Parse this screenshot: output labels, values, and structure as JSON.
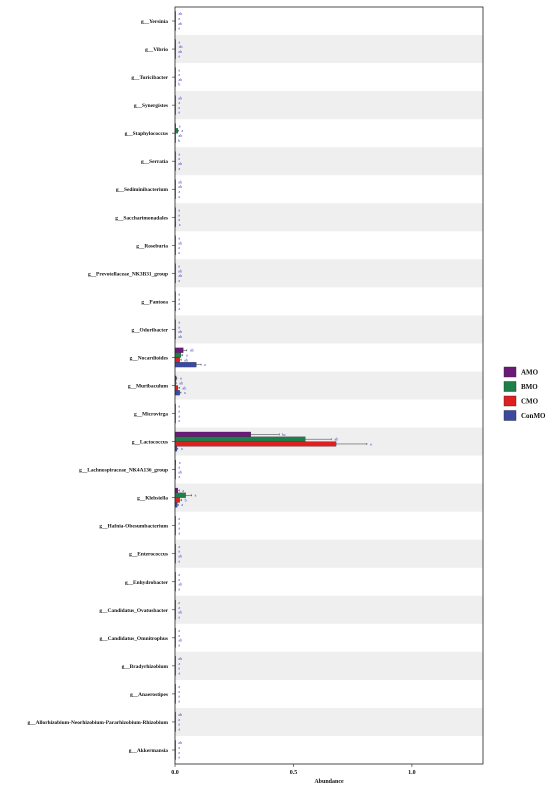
{
  "chart_data": {
    "type": "bar",
    "orientation": "horizontal",
    "categories": [
      "g__Yersinia",
      "g__Vibrio",
      "g__Turicibacter",
      "g__Synergistes",
      "g__Staphylococcus",
      "g__Serratia",
      "g__Sediminibacterium",
      "g__Saccharimonadales",
      "g__Roseburia",
      "g__Prevotellaceae_NK3B31_group",
      "g__Pantoea",
      "g__Odoribacter",
      "g__Nocardioides",
      "g__Muribaculum",
      "g__Microvirga",
      "g__Lactococcus",
      "g__Lachnospiraceae_NK4A136_group",
      "g__Klebsiella",
      "g__Hafnia-Obesumbacterium",
      "g__Enterococcus",
      "g__Enhydrobacter",
      "g__Candidatus_Ovatusbacter",
      "g__Candidatus_Omnitrophus",
      "g__Bradyrhizobium",
      "g__Anaerostipes",
      "g__Allorhizobium-Neorhizobium-Pararhizobium-Rhizobium",
      "g__Akkermansia"
    ],
    "series": [
      {
        "name": "AMO",
        "color": "#6a1b7a",
        "values": [
          0.002,
          0.002,
          0.001,
          0.001,
          0.003,
          0.002,
          0.001,
          0.001,
          0.002,
          0.001,
          0.001,
          0.002,
          0.035,
          0.005,
          0.001,
          0.32,
          0.003,
          0.012,
          0.001,
          0.002,
          0.001,
          0.001,
          0.001,
          0.001,
          0.001,
          0.001,
          0.001
        ],
        "errors": [
          0,
          0,
          0,
          0,
          0,
          0,
          0,
          0,
          0,
          0,
          0,
          0,
          0.015,
          0.003,
          0,
          0.12,
          0,
          0.006,
          0,
          0,
          0,
          0,
          0,
          0,
          0,
          0,
          0
        ],
        "sig": [
          "ab",
          "a",
          "a",
          "ab",
          "a",
          "a",
          "ab",
          "a",
          "a",
          "a",
          "a",
          "a",
          "ab",
          "a",
          "a",
          "bc",
          "a",
          "a",
          "a",
          "a",
          "a",
          "a",
          "a",
          "ab",
          "a",
          "ab",
          "ab"
        ]
      },
      {
        "name": "BMO",
        "color": "#1d7f4a",
        "values": [
          0.001,
          0.003,
          0.001,
          0.002,
          0.012,
          0.001,
          0.001,
          0.001,
          0.001,
          0.001,
          0.001,
          0.001,
          0.025,
          0.003,
          0.001,
          0.55,
          0.002,
          0.045,
          0.001,
          0.001,
          0.001,
          0.002,
          0.001,
          0.002,
          0.001,
          0.001,
          0.001
        ],
        "errors": [
          0,
          0,
          0,
          0,
          0.003,
          0,
          0,
          0,
          0,
          0,
          0,
          0,
          0.008,
          0.002,
          0,
          0.11,
          0,
          0.025,
          0,
          0,
          0,
          0,
          0,
          0,
          0,
          0,
          0
        ],
        "sig": [
          "a",
          "ab",
          "a",
          "a",
          "a",
          "a",
          "ab",
          "a",
          "ab",
          "ab",
          "a",
          "a",
          "a",
          "ab",
          "a",
          "ab",
          "a",
          "a",
          "a",
          "a",
          "a",
          "a",
          "a",
          "a",
          "a",
          "a",
          "a"
        ]
      },
      {
        "name": "CMO",
        "color": "#e02020",
        "values": [
          0.001,
          0.001,
          0.002,
          0.001,
          0.002,
          0.001,
          0.002,
          0.001,
          0.001,
          0.002,
          0.001,
          0.001,
          0.02,
          0.012,
          0.002,
          0.68,
          0.001,
          0.02,
          0.002,
          0.001,
          0.002,
          0.001,
          0.002,
          0.001,
          0.001,
          0.001,
          0.001
        ],
        "errors": [
          0,
          0,
          0,
          0,
          0,
          0,
          0,
          0,
          0,
          0,
          0,
          0,
          0.006,
          0.007,
          0,
          0.13,
          0,
          0.008,
          0,
          0,
          0,
          0,
          0,
          0,
          0,
          0,
          0
        ],
        "sig": [
          "ab",
          "ab",
          "ab",
          "a",
          "ab",
          "ab",
          "a",
          "a",
          "a",
          "ab",
          "a",
          "ab",
          "ab",
          "ab",
          "a",
          "a",
          "ab",
          "b",
          "a",
          "ab",
          "ab",
          "ab",
          "ab",
          "a",
          "a",
          "a",
          "a"
        ]
      },
      {
        "name": "ConMO",
        "color": "#3b4aa0",
        "values": [
          0.001,
          0.001,
          0.001,
          0.001,
          0.001,
          0.002,
          0.001,
          0.003,
          0.001,
          0.001,
          0.002,
          0.001,
          0.09,
          0.02,
          0.001,
          0.008,
          0.002,
          0.01,
          0.002,
          0.001,
          0.001,
          0.001,
          0.001,
          0.002,
          0.001,
          0.002,
          0.001
        ],
        "errors": [
          0,
          0,
          0,
          0,
          0,
          0,
          0,
          0,
          0,
          0,
          0,
          0,
          0.02,
          0.005,
          0,
          0.004,
          0,
          0.004,
          0,
          0,
          0,
          0,
          0,
          0,
          0,
          0,
          0
        ],
        "sig": [
          "a",
          "a",
          "b",
          "a",
          "b",
          "a",
          "a",
          "a",
          "a",
          "a",
          "a",
          "ab",
          "a",
          "a",
          "a",
          "a",
          "a",
          "a",
          "a",
          "a",
          "a",
          "a",
          "a",
          "a",
          "a",
          "a",
          "a"
        ]
      }
    ],
    "xlabel": "Abundance",
    "xlim": [
      0,
      1.3
    ],
    "xticks": [
      "0.0",
      "0.5",
      "1.0"
    ],
    "xtick_values": [
      0,
      0.5,
      1.0
    ],
    "legend_position": "right",
    "striped_background": true
  }
}
